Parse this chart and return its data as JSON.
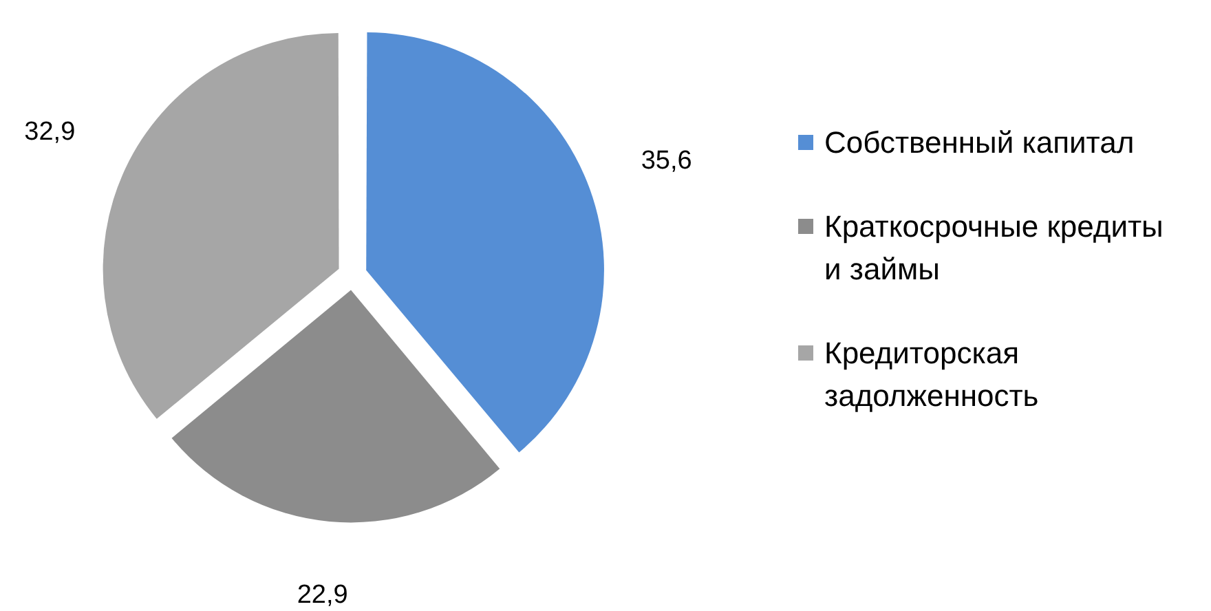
{
  "chart_data": {
    "type": "pie",
    "categories": [
      "Собственный капитал",
      "Краткосрочные кредиты и займы",
      "Кредиторская задолженность"
    ],
    "values": [
      35.6,
      22.9,
      32.9
    ],
    "colors": [
      "#558ed5",
      "#8c8c8c",
      "#a6a6a6"
    ],
    "value_labels": [
      "35,6",
      "22,9",
      "32,9"
    ],
    "legend": "right"
  }
}
